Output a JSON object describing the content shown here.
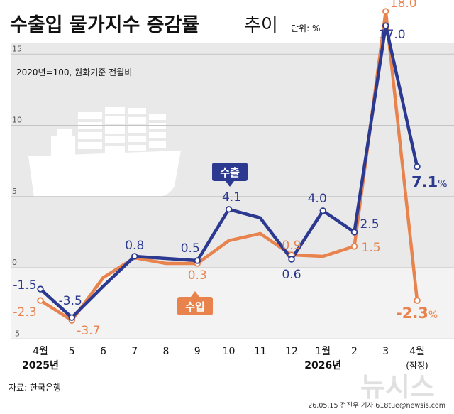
{
  "header": {
    "title": "수출입 물가지수 증감률",
    "title_suffix": "추이",
    "unit": "단위: %",
    "base_note": "2020년=100, 원화기준 전월비"
  },
  "footer": {
    "source": "자료: 한국은행",
    "credit": "26.05.15 전진우 기자 618tue@newsis.com",
    "watermark": "뉴시스"
  },
  "colors": {
    "export": "#2b3990",
    "import": "#e8834d",
    "panel_bg": "#e9e9e9",
    "negative_band": "#f3f3f3"
  },
  "icons": [
    "cargo-ship-icon"
  ],
  "chart_data": {
    "type": "line",
    "categories": [
      "4월",
      "5",
      "6",
      "7",
      "8",
      "9",
      "10",
      "11",
      "12",
      "1월",
      "2",
      "3",
      "4월"
    ],
    "category_sublabels": [
      "2025년",
      "",
      "",
      "",
      "",
      "",
      "",
      "",
      "",
      "2026년",
      "",
      "",
      "(잠정)"
    ],
    "ylim": [
      -5,
      18
    ],
    "yticks": [
      "-5",
      "0",
      "5",
      "10",
      "15"
    ],
    "grid": true,
    "series": [
      {
        "name": "수출",
        "color": "#2b3990",
        "values": [
          -1.5,
          -3.5,
          -1.3,
          0.8,
          0.65,
          0.5,
          4.1,
          3.5,
          0.6,
          4.0,
          2.5,
          17.0,
          7.1
        ],
        "labeled": [
          {
            "i": 0,
            "text": "-1.5"
          },
          {
            "i": 1,
            "text": "-3.5"
          },
          {
            "i": 3,
            "text": "0.8"
          },
          {
            "i": 5,
            "text": "0.5"
          },
          {
            "i": 6,
            "text": "4.1"
          },
          {
            "i": 8,
            "text": "0.6"
          },
          {
            "i": 9,
            "text": "4.0"
          },
          {
            "i": 10,
            "text": "2.5"
          },
          {
            "i": 11,
            "text": "17.0"
          },
          {
            "i": 12,
            "text": "7.1",
            "suffix": "%"
          }
        ]
      },
      {
        "name": "수입",
        "color": "#e8834d",
        "values": [
          -2.3,
          -3.7,
          -0.7,
          0.7,
          0.3,
          0.3,
          1.9,
          2.4,
          0.9,
          0.8,
          1.5,
          18.0,
          -2.3
        ],
        "labeled": [
          {
            "i": 0,
            "text": "-2.3"
          },
          {
            "i": 1,
            "text": "-3.7"
          },
          {
            "i": 5,
            "text": "0.3"
          },
          {
            "i": 8,
            "text": "0.9"
          },
          {
            "i": 10,
            "text": "1.5"
          },
          {
            "i": 11,
            "text": "18.0"
          },
          {
            "i": 12,
            "text": "-2.3",
            "suffix": "%"
          }
        ]
      }
    ]
  }
}
